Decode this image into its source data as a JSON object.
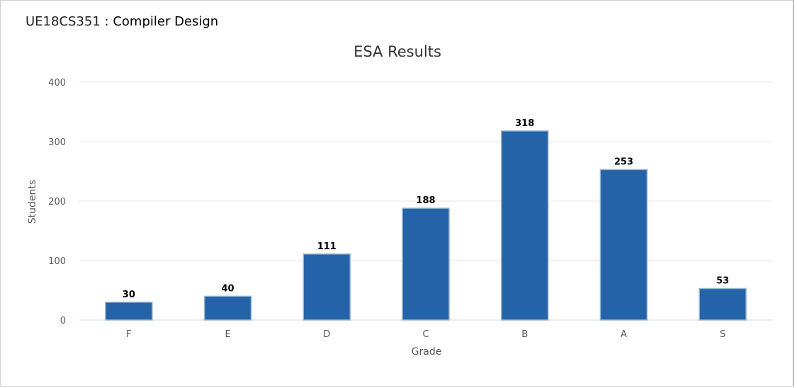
{
  "header": {
    "course_code": "UE18CS351",
    "separator": " : ",
    "course_name": "Compiler Design"
  },
  "colors": {
    "bar": "#2563a8",
    "bar_border": "#9bb7cf",
    "grid": "#e6e6e6",
    "axis": "#cfd8dc"
  },
  "chart_data": {
    "type": "bar",
    "title": "ESA Results",
    "xlabel": "Grade",
    "ylabel": "Students",
    "categories": [
      "F",
      "E",
      "D",
      "C",
      "B",
      "A",
      "S"
    ],
    "values": [
      30,
      40,
      111,
      188,
      318,
      253,
      53
    ],
    "ylim": [
      0,
      400
    ],
    "yticks": [
      0,
      100,
      200,
      300,
      400
    ],
    "grid": true,
    "legend": "none"
  }
}
